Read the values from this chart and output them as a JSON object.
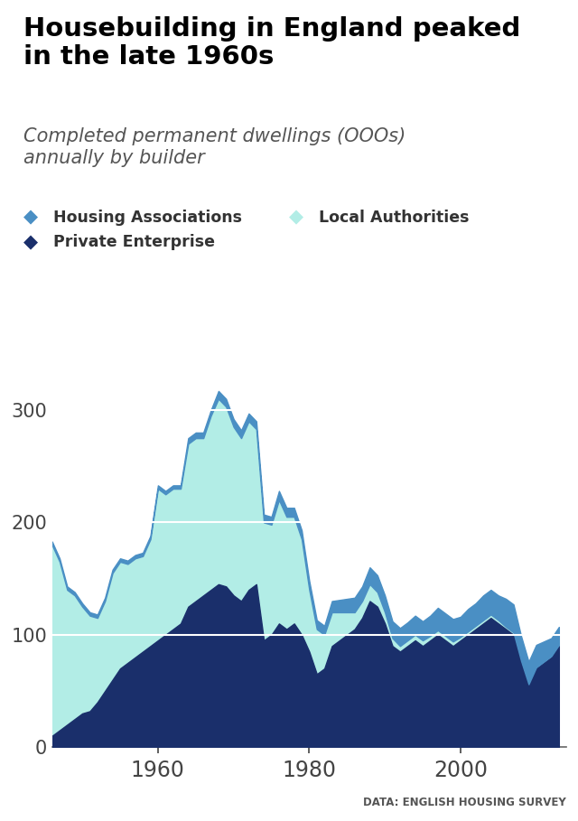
{
  "title": "Housebuilding in England peaked\nin the late 1960s",
  "subtitle": "Completed permanent dwellings (OOOs)\nannually by builder",
  "source": "DATA: ENGLISH HOUSING SURVEY",
  "title_fontsize": 21,
  "subtitle_fontsize": 15,
  "years": [
    1946,
    1947,
    1948,
    1949,
    1950,
    1951,
    1952,
    1953,
    1954,
    1955,
    1956,
    1957,
    1958,
    1959,
    1960,
    1961,
    1962,
    1963,
    1964,
    1965,
    1966,
    1967,
    1968,
    1969,
    1970,
    1971,
    1972,
    1973,
    1974,
    1975,
    1976,
    1977,
    1978,
    1979,
    1980,
    1981,
    1982,
    1983,
    1984,
    1985,
    1986,
    1987,
    1988,
    1989,
    1990,
    1991,
    1992,
    1993,
    1994,
    1995,
    1996,
    1997,
    1998,
    1999,
    2000,
    2001,
    2002,
    2003,
    2004,
    2005,
    2006,
    2007,
    2008,
    2009,
    2010,
    2011,
    2012,
    2013
  ],
  "private_enterprise": [
    10,
    15,
    20,
    25,
    30,
    32,
    40,
    50,
    60,
    70,
    75,
    80,
    85,
    90,
    95,
    100,
    105,
    110,
    125,
    130,
    135,
    140,
    145,
    143,
    135,
    130,
    140,
    145,
    95,
    100,
    110,
    105,
    110,
    100,
    85,
    65,
    70,
    90,
    95,
    100,
    105,
    115,
    130,
    125,
    110,
    90,
    85,
    90,
    95,
    90,
    95,
    100,
    95,
    90,
    95,
    100,
    105,
    110,
    115,
    110,
    105,
    100,
    75,
    55,
    70,
    75,
    80,
    90
  ],
  "local_authorities": [
    170,
    150,
    120,
    110,
    95,
    85,
    75,
    80,
    95,
    95,
    88,
    88,
    85,
    95,
    135,
    125,
    125,
    120,
    145,
    145,
    140,
    155,
    165,
    160,
    150,
    145,
    150,
    138,
    105,
    98,
    110,
    100,
    95,
    85,
    55,
    40,
    30,
    30,
    25,
    20,
    15,
    15,
    15,
    13,
    10,
    7,
    5,
    5,
    5,
    5,
    4,
    4,
    4,
    4,
    3,
    3,
    3,
    3,
    3,
    3,
    2,
    2,
    2,
    1,
    1,
    1,
    1,
    1
  ],
  "housing_associations": [
    3,
    3,
    3,
    3,
    3,
    3,
    3,
    3,
    3,
    3,
    3,
    3,
    3,
    3,
    3,
    3,
    3,
    3,
    5,
    5,
    5,
    5,
    7,
    7,
    7,
    7,
    7,
    7,
    7,
    7,
    8,
    8,
    8,
    8,
    8,
    8,
    8,
    10,
    11,
    12,
    13,
    13,
    15,
    15,
    15,
    15,
    16,
    16,
    17,
    17,
    18,
    20,
    20,
    20,
    18,
    20,
    20,
    22,
    22,
    22,
    25,
    25,
    22,
    20,
    20,
    18,
    16,
    16
  ],
  "color_private": "#1a2f6b",
  "color_local": "#b2ede6",
  "color_ha": "#4a8fc4",
  "ylim": [
    0,
    380
  ],
  "yticks": [
    0,
    100,
    200,
    300
  ],
  "xticks": [
    1960,
    1980,
    2000
  ],
  "xlim_start": 1946,
  "xlim_end": 2014
}
